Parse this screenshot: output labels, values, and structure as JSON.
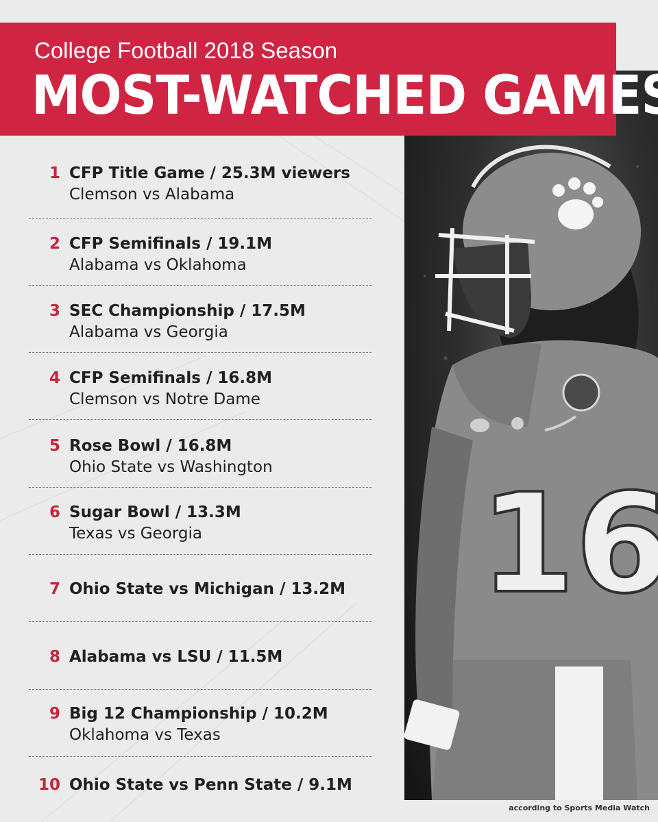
{
  "header": {
    "subtitle": "College Football 2018 Season",
    "title": "MOST-WATCHED GAMES"
  },
  "games": [
    {
      "rank": "1",
      "line1": "CFP Title Game / 25.3M viewers",
      "line2": "Clemson vs Alabama"
    },
    {
      "rank": "2",
      "line1": "CFP Semifinals / 19.1M",
      "line2": "Alabama vs Oklahoma"
    },
    {
      "rank": "3",
      "line1": "SEC Championship / 17.5M",
      "line2": "Alabama vs Georgia"
    },
    {
      "rank": "4",
      "line1": "CFP Semifinals / 16.8M",
      "line2": "Clemson vs Notre Dame"
    },
    {
      "rank": "5",
      "line1": "Rose Bowl / 16.8M",
      "line2": "Ohio State vs Washington"
    },
    {
      "rank": "6",
      "line1": "Sugar Bowl / 13.3M",
      "line2": "Texas vs Georgia"
    },
    {
      "rank": "7",
      "line1": "Ohio State vs Michigan / 13.2M",
      "line2": ""
    },
    {
      "rank": "8",
      "line1": "Alabama vs LSU / 11.5M",
      "line2": ""
    },
    {
      "rank": "9",
      "line1": "Big 12 Championship / 10.2M",
      "line2": "Oklahoma vs Texas"
    },
    {
      "rank": "10",
      "line1": "Ohio State vs Penn State / 9.1M",
      "line2": ""
    }
  ],
  "photo": {
    "jersey_number": "16"
  },
  "credit": "according to Sports Media Watch",
  "colors": {
    "accent": "#cf2543",
    "background": "#ebebeb",
    "text": "#202020"
  }
}
